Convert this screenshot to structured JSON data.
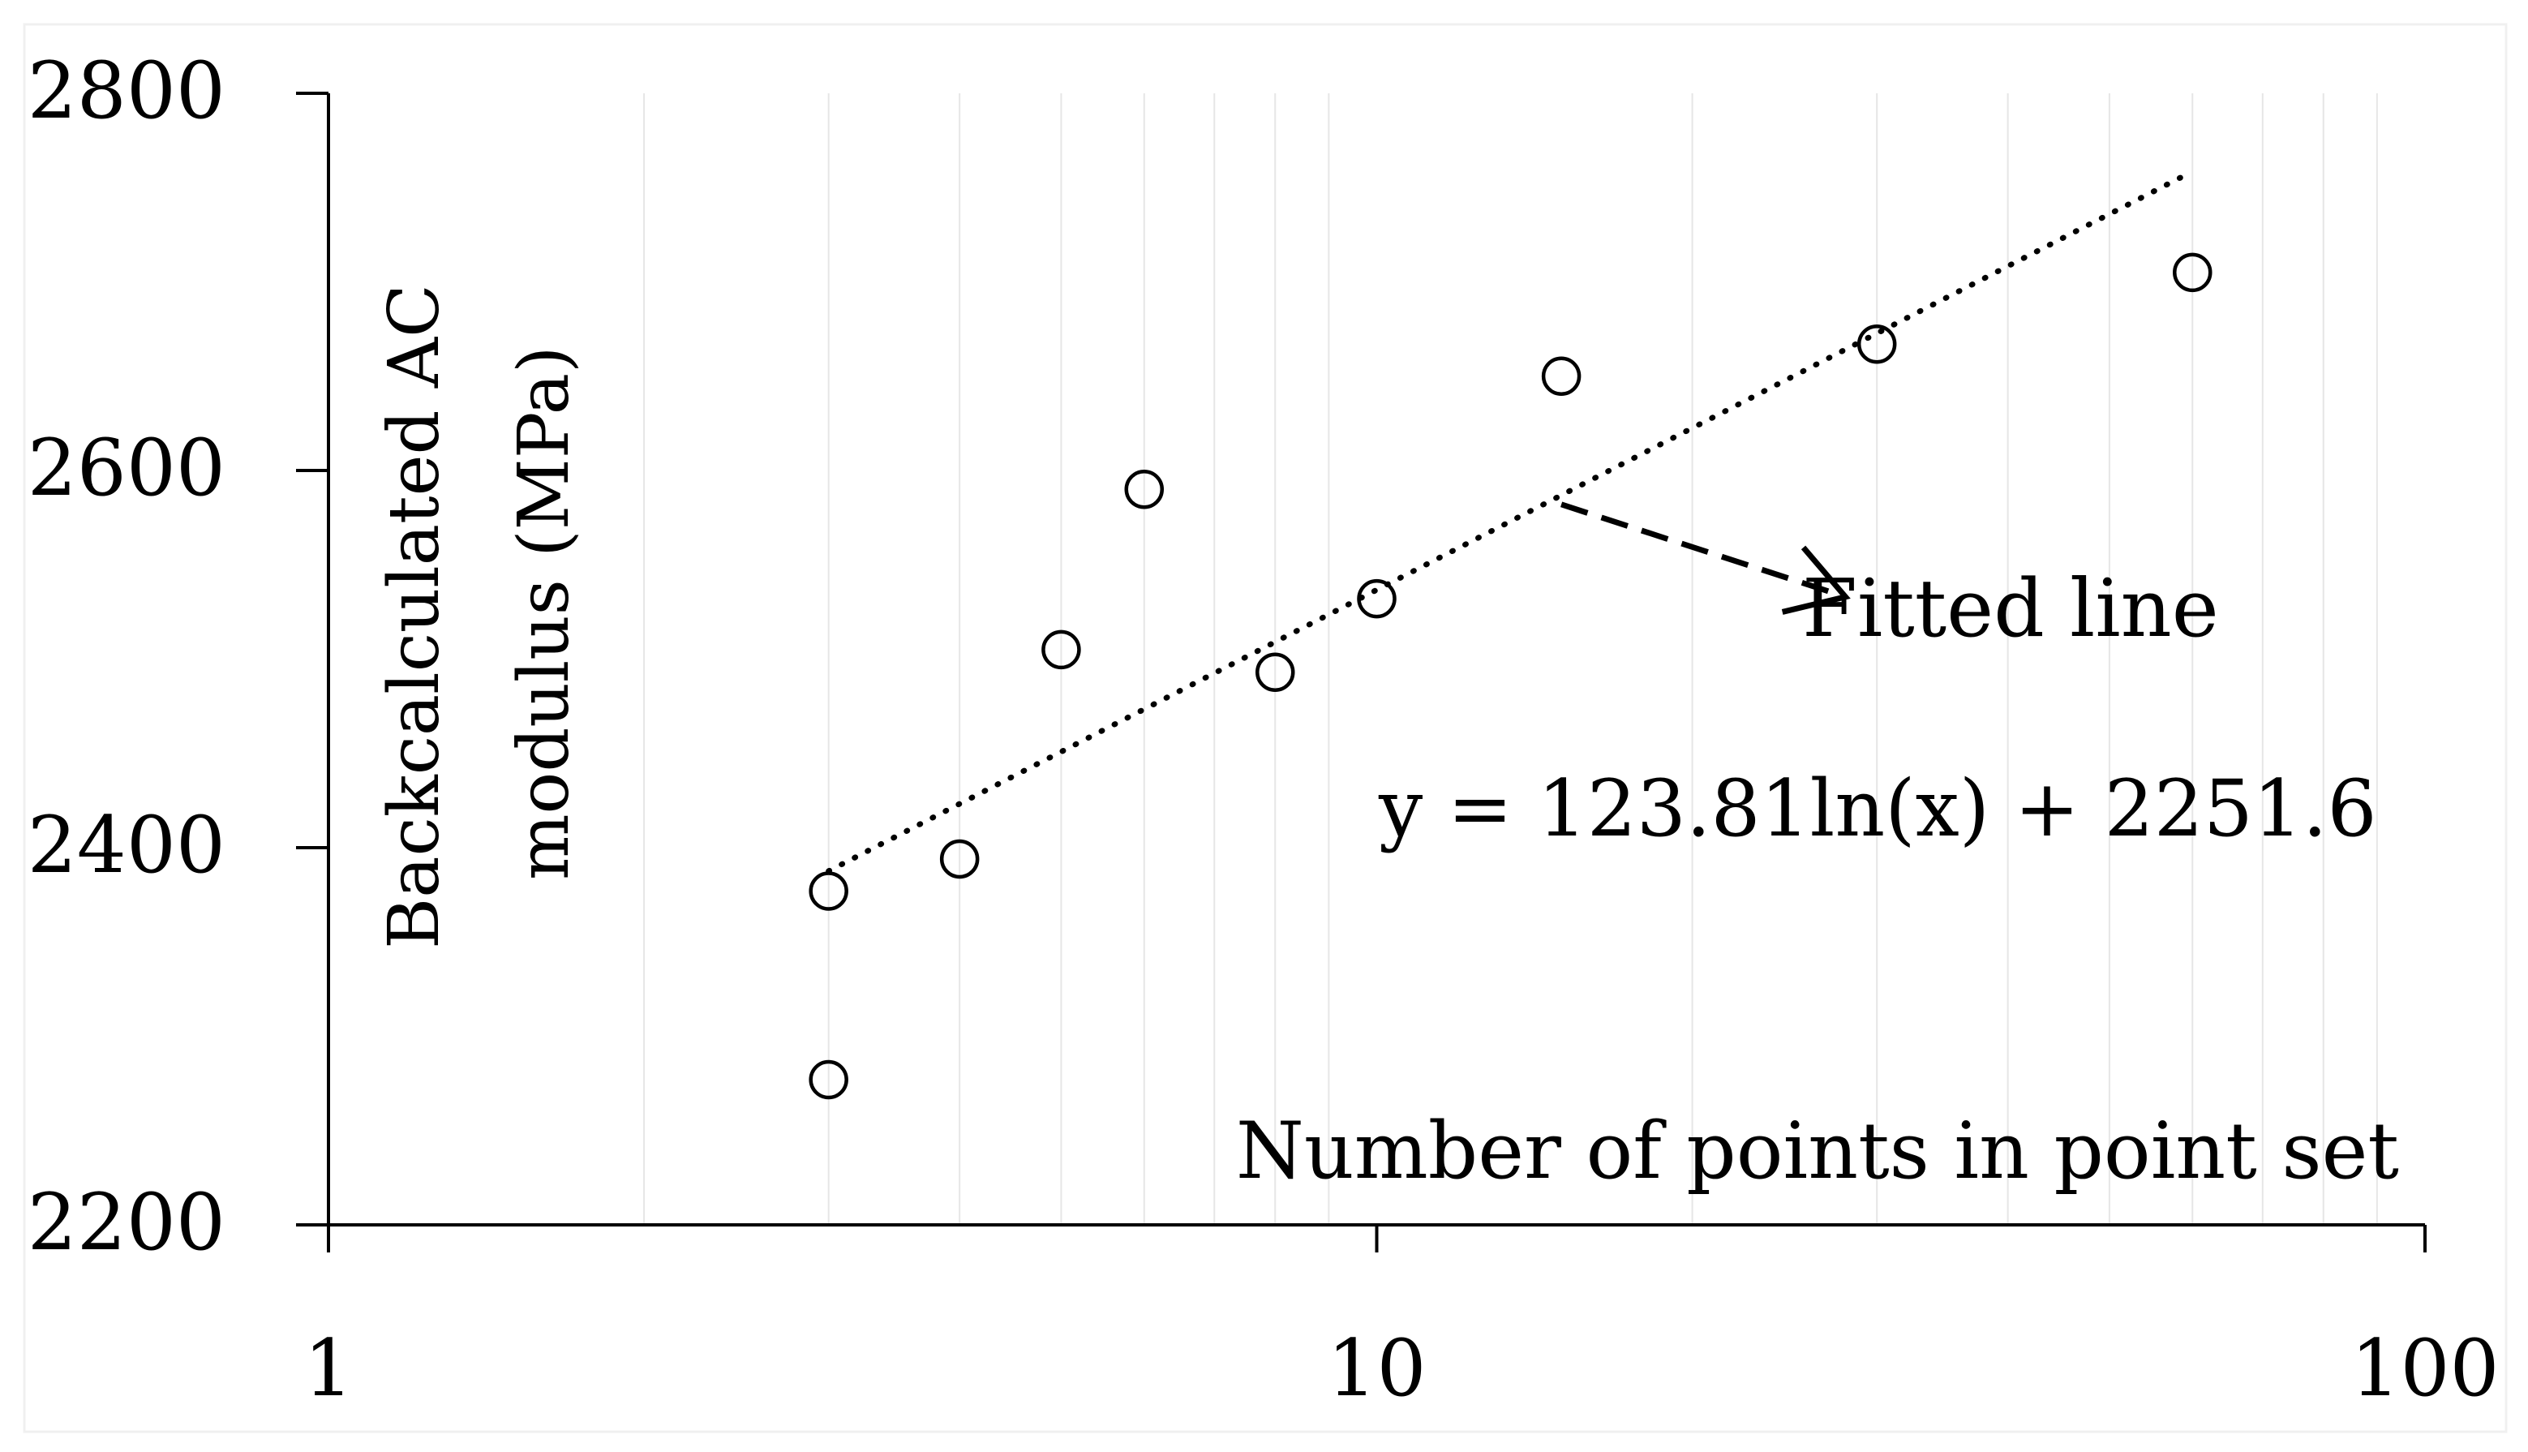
{
  "chart_data": {
    "type": "scatter",
    "title": "",
    "xlabel": "Number of points in point set",
    "ylabel": "Backcalculated AC modulus (MPa)",
    "ylabel_lines": [
      "Backcalculated AC",
      "modulus (MPa)"
    ],
    "x_scale": "log",
    "xlim": [
      1,
      100
    ],
    "ylim": [
      2200,
      2800
    ],
    "x_ticks": [
      "1",
      "10",
      "100"
    ],
    "y_ticks": [
      "2200",
      "2400",
      "2600",
      "2800"
    ],
    "grid": "vertical minor lines",
    "series": [
      {
        "marker": "open-circle",
        "x": [
          3,
          3,
          4,
          5,
          6,
          8,
          10,
          15,
          30,
          60
        ],
        "y": [
          2377,
          2277,
          2394,
          2505,
          2590,
          2493,
          2532,
          2650,
          2667,
          2705
        ]
      }
    ],
    "trendline": {
      "style": "dotted",
      "equation": "y = 123.81ln(x) + 2251.6",
      "a": 123.81,
      "b": 2251.6,
      "x_range": [
        3,
        60
      ]
    },
    "annotation": {
      "text": "Fitted line",
      "arrow_from": [
        15,
        2582
      ],
      "arrow_to": [
        28,
        2533
      ]
    },
    "colors": {
      "axis": "#000000",
      "grid": "#e6e6e6",
      "marker": "#000000"
    }
  }
}
